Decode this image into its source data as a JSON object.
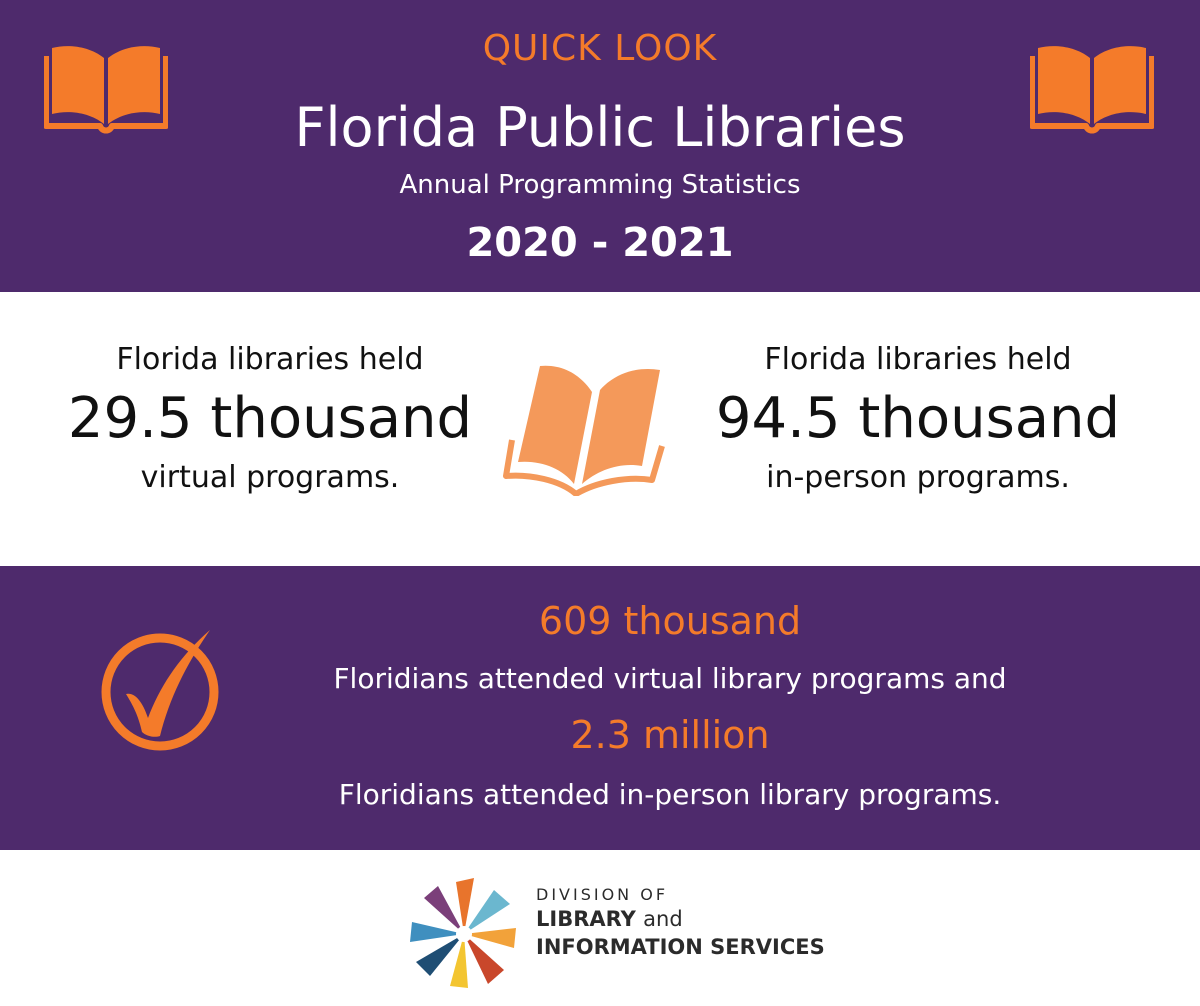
{
  "header": {
    "eyebrow": "QUICK LOOK",
    "title": "Florida Public Libraries",
    "subtitle": "Annual Programming Statistics",
    "years": "2020 - 2021"
  },
  "stats": {
    "left": {
      "lead": "Florida libraries held",
      "value": "29.5 thousand",
      "tail": "virtual programs."
    },
    "right": {
      "lead": "Florida libraries held",
      "value": "94.5 thousand",
      "tail": "in-person programs."
    }
  },
  "attendance": {
    "virtual_value": "609  thousand",
    "virtual_text": "Floridians attended virtual library programs and",
    "inperson_value": "2.3 million",
    "inperson_text": "Floridians attended in-person library programs."
  },
  "footer": {
    "logo_line1": "DIVISION OF",
    "logo_line2a": "LIBRARY",
    "logo_line2b": "and",
    "logo_line3": "INFORMATION SERVICES"
  },
  "colors": {
    "purple": "#4e2a6c",
    "orange": "#f47b2a",
    "white": "#ffffff"
  },
  "icons": [
    "open-book-icon",
    "open-book-icon",
    "open-book-icon",
    "checkmark-circle-icon",
    "division-logo"
  ]
}
